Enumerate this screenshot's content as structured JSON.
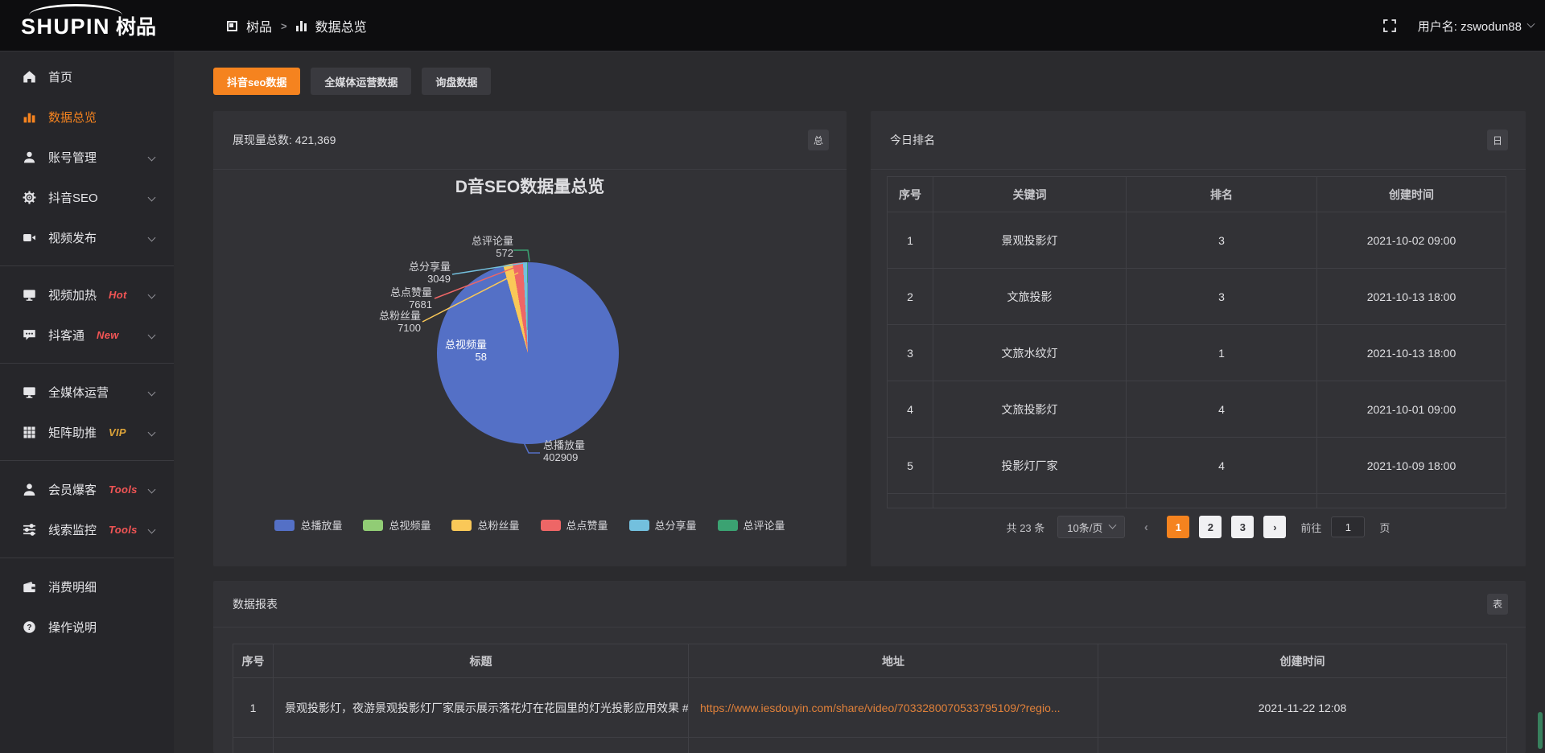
{
  "topbar": {
    "logo_en": "SHUPIN",
    "logo_cn": "树品",
    "breadcrumb": {
      "root": "树品",
      "separator": ">",
      "current": "数据总览"
    },
    "username": "用户名: zswodun88"
  },
  "sidebar": {
    "items": [
      {
        "label": "首页",
        "icon": "home"
      },
      {
        "label": "数据总览",
        "icon": "bar-chart",
        "active": true
      },
      {
        "label": "账号管理",
        "icon": "user",
        "expandable": true
      },
      {
        "label": "抖音SEO",
        "icon": "gear",
        "expandable": true
      },
      {
        "label": "视频发布",
        "icon": "video",
        "expandable": true,
        "divider_after": true
      },
      {
        "label": "视频加热",
        "icon": "screen",
        "badge": "Hot",
        "badge_color": "red",
        "expandable": true
      },
      {
        "label": "抖客通",
        "icon": "chat",
        "badge": "New",
        "badge_color": "red",
        "expandable": true,
        "divider_after": true
      },
      {
        "label": "全媒体运营",
        "icon": "monitor",
        "expandable": true
      },
      {
        "label": "矩阵助推",
        "icon": "grid",
        "badge": "VIP",
        "badge_color": "gold",
        "expandable": true,
        "divider_after": true
      },
      {
        "label": "会员爆客",
        "icon": "person",
        "badge": "Tools",
        "badge_color": "red",
        "expandable": true
      },
      {
        "label": "线索监控",
        "icon": "sliders",
        "badge": "Tools",
        "badge_color": "red",
        "expandable": true,
        "divider_after": true
      },
      {
        "label": "消费明细",
        "icon": "wallet"
      },
      {
        "label": "操作说明",
        "icon": "help"
      }
    ]
  },
  "tabs": {
    "items": [
      {
        "label": "抖音seo数据",
        "active": true
      },
      {
        "label": "全媒体运营数据"
      },
      {
        "label": "询盘数据"
      }
    ]
  },
  "overview_panel": {
    "header": "展现量总数: 421,369",
    "badge": "总"
  },
  "chart_data": {
    "type": "pie",
    "title": "D音SEO数据量总览",
    "total_label": "展现量总数",
    "total_value": "421,369",
    "legend_position": "bottom",
    "series": [
      {
        "name": "总播放量",
        "value": 402909,
        "color": "#5470c6"
      },
      {
        "name": "总视频量",
        "value": 58,
        "color": "#91cc75"
      },
      {
        "name": "总粉丝量",
        "value": 7100,
        "color": "#fac858"
      },
      {
        "name": "总点赞量",
        "value": 7681,
        "color": "#ee6666"
      },
      {
        "name": "总分享量",
        "value": 3049,
        "color": "#73c0de"
      },
      {
        "name": "总评论量",
        "value": 572,
        "color": "#3ba272"
      }
    ]
  },
  "ranking_panel": {
    "title": "今日排名",
    "badge": "日",
    "table": {
      "headers": [
        "序号",
        "关键词",
        "排名",
        "创建时间"
      ],
      "rows": [
        [
          "1",
          "景观投影灯",
          "3",
          "2021-10-02 09:00"
        ],
        [
          "2",
          "文旅投影",
          "3",
          "2021-10-13 18:00"
        ],
        [
          "3",
          "文旅水纹灯",
          "1",
          "2021-10-13 18:00"
        ],
        [
          "4",
          "文旅投影灯",
          "4",
          "2021-10-01 09:00"
        ],
        [
          "5",
          "投影灯厂家",
          "4",
          "2021-10-09 18:00"
        ]
      ]
    },
    "pagination": {
      "total": "共 23 条",
      "page_size": "10条/页",
      "prev": "‹",
      "pages": [
        "1",
        "2",
        "3"
      ],
      "active_page": "1",
      "next": "›",
      "goto_label": "前往",
      "goto_value": "1",
      "goto_suffix": "页"
    }
  },
  "report_panel": {
    "title": "数据报表",
    "badge": "表",
    "table": {
      "headers": [
        "序号",
        "标题",
        "地址",
        "创建时间"
      ],
      "rows": [
        [
          "1",
          "景观投影灯，夜游景观投影灯厂家展示展示落花灯在花园里的灯光投影应用效果 #",
          "https://www.iesdouyin.com/share/video/7033280070533795109/?regio...",
          "2021-11-22 12:08"
        ]
      ]
    }
  }
}
